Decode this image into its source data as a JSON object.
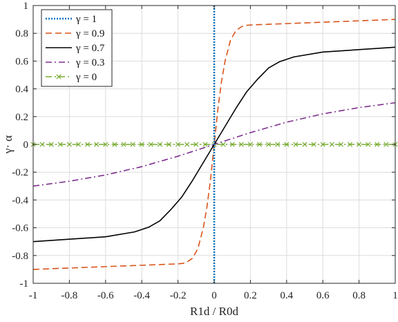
{
  "chart_data": {
    "type": "line",
    "title": "",
    "xlabel": "R1d / R0d",
    "ylabel": "γ· α",
    "xlim": [
      -1,
      1
    ],
    "ylim": [
      -1,
      1
    ],
    "xticks": [
      -1,
      -0.8,
      -0.6,
      -0.4,
      -0.2,
      0,
      0.2,
      0.4,
      0.6,
      0.8,
      1
    ],
    "yticks": [
      -1,
      -0.8,
      -0.6,
      -0.4,
      -0.2,
      0,
      0.2,
      0.4,
      0.6,
      0.8,
      1
    ],
    "grid": true,
    "legend_position": "top-left",
    "series": [
      {
        "name": "γ = 1",
        "color": "#0072BD",
        "style": "dotted",
        "x": [
          0,
          0
        ],
        "y": [
          -1,
          1
        ]
      },
      {
        "name": "γ = 0.9",
        "color": "#D95319",
        "style": "dashed",
        "x": [
          -1,
          -0.8,
          -0.6,
          -0.4,
          -0.2,
          -0.16,
          -0.12,
          -0.09,
          -0.06,
          -0.04,
          -0.02,
          0,
          0.02,
          0.04,
          0.06,
          0.09,
          0.12,
          0.16,
          0.2,
          0.4,
          0.6,
          0.8,
          1
        ],
        "y": [
          -0.9,
          -0.89,
          -0.88,
          -0.87,
          -0.86,
          -0.855,
          -0.82,
          -0.75,
          -0.6,
          -0.45,
          -0.25,
          0,
          0.25,
          0.45,
          0.6,
          0.75,
          0.82,
          0.855,
          0.86,
          0.87,
          0.88,
          0.89,
          0.9
        ]
      },
      {
        "name": "γ = 0.7",
        "color": "#000000",
        "style": "solid",
        "x": [
          -1,
          -0.6,
          -0.44,
          -0.36,
          -0.3,
          -0.24,
          -0.18,
          -0.12,
          -0.06,
          0,
          0.06,
          0.12,
          0.18,
          0.24,
          0.3,
          0.36,
          0.44,
          0.6,
          1
        ],
        "y": [
          -0.7,
          -0.665,
          -0.63,
          -0.595,
          -0.55,
          -0.47,
          -0.38,
          -0.26,
          -0.13,
          0,
          0.13,
          0.26,
          0.38,
          0.47,
          0.55,
          0.595,
          0.63,
          0.665,
          0.7
        ]
      },
      {
        "name": "γ = 0.3",
        "color": "#7E2F8E",
        "style": "dashdot",
        "x": [
          -1,
          -0.8,
          -0.6,
          -0.4,
          -0.2,
          0,
          0.2,
          0.4,
          0.6,
          0.8,
          1
        ],
        "y": [
          -0.3,
          -0.265,
          -0.22,
          -0.16,
          -0.085,
          0,
          0.085,
          0.16,
          0.22,
          0.265,
          0.3
        ]
      },
      {
        "name": "γ = 0",
        "color": "#77AC30",
        "style": "dashdot-x",
        "x": [
          -1,
          -0.95,
          -0.9,
          -0.85,
          -0.8,
          -0.75,
          -0.7,
          -0.65,
          -0.6,
          -0.55,
          -0.5,
          -0.45,
          -0.4,
          -0.35,
          -0.3,
          -0.25,
          -0.2,
          -0.15,
          -0.1,
          -0.05,
          0,
          0.05,
          0.1,
          0.15,
          0.2,
          0.25,
          0.3,
          0.35,
          0.4,
          0.45,
          0.5,
          0.55,
          0.6,
          0.65,
          0.7,
          0.75,
          0.8,
          0.85,
          0.9,
          0.95,
          1
        ],
        "y": [
          0,
          0,
          0,
          0,
          0,
          0,
          0,
          0,
          0,
          0,
          0,
          0,
          0,
          0,
          0,
          0,
          0,
          0,
          0,
          0,
          0,
          0,
          0,
          0,
          0,
          0,
          0,
          0,
          0,
          0,
          0,
          0,
          0,
          0,
          0,
          0,
          0,
          0,
          0,
          0,
          0
        ]
      }
    ]
  }
}
